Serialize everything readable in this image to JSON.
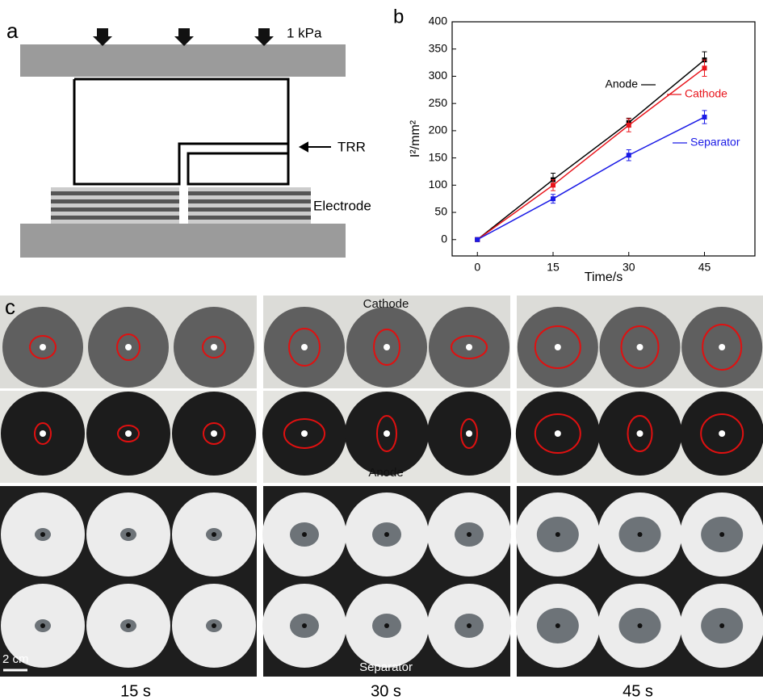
{
  "panel_a": {
    "label": "a",
    "pressure": "1 kPa",
    "trr": "TRR",
    "electrode": "Electrode"
  },
  "chart_data": {
    "type": "line",
    "label": "b",
    "xlabel": "Time/s",
    "ylabel": "I²/mm²",
    "x": [
      0,
      15,
      30,
      45
    ],
    "xlim": [
      -5,
      55
    ],
    "xticks": [
      0,
      15,
      30,
      45
    ],
    "ylim": [
      -30,
      400
    ],
    "yticks": [
      0,
      50,
      100,
      150,
      200,
      250,
      300,
      350,
      400
    ],
    "series": [
      {
        "name": "Anode",
        "color": "#000000",
        "values": [
          0,
          110,
          215,
          330
        ],
        "errors": [
          0,
          12,
          8,
          15
        ]
      },
      {
        "name": "Cathode",
        "color": "#e8141b",
        "values": [
          0,
          100,
          210,
          315
        ],
        "errors": [
          0,
          10,
          12,
          15
        ]
      },
      {
        "name": "Separator",
        "color": "#1a1ae6",
        "values": [
          0,
          75,
          155,
          225
        ],
        "errors": [
          0,
          8,
          10,
          12
        ]
      }
    ]
  },
  "panel_c": {
    "label": "c",
    "cathode": "Cathode",
    "anode": "Anode",
    "separator": "Separator",
    "scale": "2 cm",
    "times": [
      "15 s",
      "30 s",
      "45 s"
    ]
  }
}
